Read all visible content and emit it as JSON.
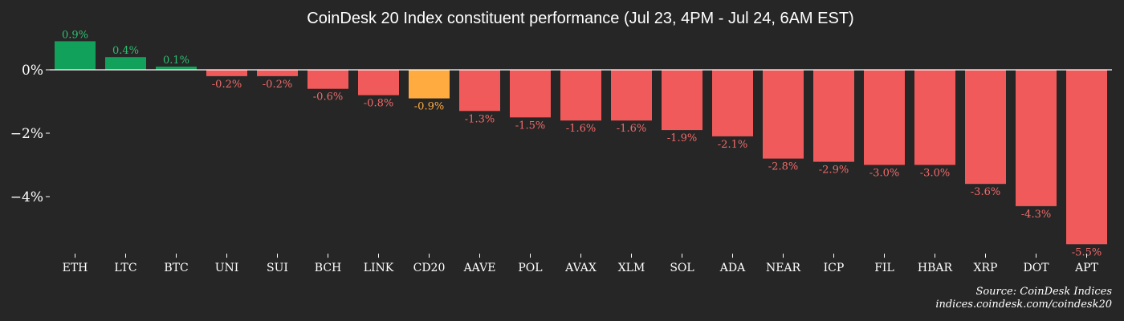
{
  "chart_data": {
    "type": "bar",
    "title": "CoinDesk 20 Index constituent performance (Jul 23, 4PM - Jul 24, 6AM EST)",
    "categories": [
      "ETH",
      "LTC",
      "BTC",
      "UNI",
      "SUI",
      "BCH",
      "LINK",
      "CD20",
      "AAVE",
      "POL",
      "AVAX",
      "XLM",
      "SOL",
      "ADA",
      "NEAR",
      "ICP",
      "FIL",
      "HBAR",
      "XRP",
      "DOT",
      "APT"
    ],
    "values": [
      0.9,
      0.4,
      0.1,
      -0.2,
      -0.2,
      -0.6,
      -0.8,
      -0.9,
      -1.3,
      -1.5,
      -1.6,
      -1.6,
      -1.9,
      -2.1,
      -2.8,
      -2.9,
      -3.0,
      -3.0,
      -3.6,
      -4.3,
      -5.5
    ],
    "value_labels": [
      "0.9%",
      "0.4%",
      "0.1%",
      "-0.2%",
      "-0.2%",
      "-0.6%",
      "-0.8%",
      "-0.9%",
      "-1.3%",
      "-1.5%",
      "-1.6%",
      "-1.6%",
      "-1.9%",
      "-2.1%",
      "-2.8%",
      "-2.9%",
      "-3.0%",
      "-3.0%",
      "-3.6%",
      "-4.3%",
      "-5.5%"
    ],
    "highlight_category": "CD20",
    "yticks": [
      0,
      -2,
      -4
    ],
    "ytick_labels": [
      "0%",
      "−2%",
      "−4%"
    ],
    "ylim": [
      -5.8,
      1.05
    ],
    "grid": false,
    "zero_line": true,
    "xlabel": "",
    "ylabel": ""
  },
  "colors": {
    "background": "#262626",
    "positive": "#12a15b",
    "negative": "#f05a5a",
    "highlight": "#ffab40",
    "positive_label": "#2fbf72",
    "negative_label": "#f26a6a",
    "highlight_label": "#ffab40",
    "axis": "#ffffff",
    "text": "#ffffff"
  },
  "source": {
    "line1": "Source: CoinDesk Indices",
    "line2": "indices.coindesk.com/coindesk20"
  }
}
